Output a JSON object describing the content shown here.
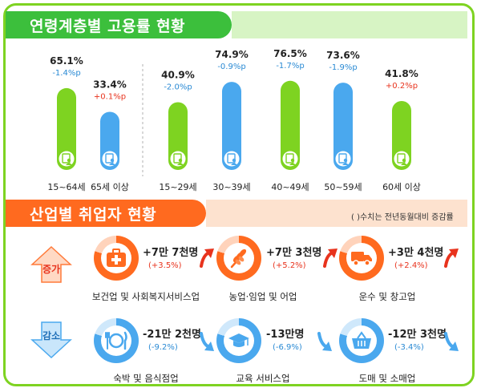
{
  "chart_data": {
    "type": "bar",
    "title": "연령계층별 고용률 현황",
    "categories": [
      "15~64세",
      "65세 이상",
      "15~29세",
      "30~39세",
      "40~49세",
      "50~59세",
      "60세 이상"
    ],
    "values": [
      65.1,
      33.4,
      40.9,
      74.9,
      76.5,
      73.6,
      41.8
    ],
    "value_labels": [
      "65.1%",
      "33.4%",
      "40.9%",
      "74.9%",
      "76.5%",
      "73.6%",
      "41.8%"
    ],
    "changes": [
      "-1.4%p",
      "+0.1%p",
      "-2.0%p",
      "-0.9%p",
      "-1.7%p",
      "-1.9%p",
      "+0.2%p"
    ],
    "change_directions": [
      "down",
      "up",
      "down",
      "down",
      "down",
      "down",
      "up"
    ],
    "bar_colors": [
      "#7ed321",
      "#4aa8ee",
      "#7ed321",
      "#4aa8ee",
      "#7ed321",
      "#4aa8ee",
      "#7ed321"
    ],
    "ylim": [
      0,
      100
    ],
    "xlabel": "",
    "ylabel": ""
  },
  "industry": {
    "title": "산업별 취업자 현황",
    "note": "( )수치는 전년동월대비 증감률",
    "increase_label": "증가",
    "decrease_label": "감소",
    "increase": [
      {
        "name": "보건업 및 사회복지서비스업",
        "change": "+7만 7천명",
        "rate": "(+3.5%)",
        "icon": "first-aid-kit-icon"
      },
      {
        "name": "농업·임업 및 어업",
        "change": "+7만 3천명",
        "rate": "(+5.2%)",
        "icon": "wheat-icon"
      },
      {
        "name": "운수 및 창고업",
        "change": "+3만 4천명",
        "rate": "(+2.4%)",
        "icon": "truck-icon"
      }
    ],
    "decrease": [
      {
        "name": "숙박 및 음식점업",
        "change": "-21만 2천명",
        "rate": "(-9.2%)",
        "icon": "fork-knife-plate-icon"
      },
      {
        "name": "교육 서비스업",
        "change": "-13만명",
        "rate": "(-6.9%)",
        "icon": "graduation-cap-icon"
      },
      {
        "name": "도매 및 소매업",
        "change": "-12만 3천명",
        "rate": "(-3.4%)",
        "icon": "shopping-basket-icon"
      }
    ],
    "colors": {
      "orange": "#ff6a1f",
      "blue": "#4aa8ee",
      "increase_text": "#e8331d",
      "decrease_text": "#2a8ad4"
    }
  }
}
